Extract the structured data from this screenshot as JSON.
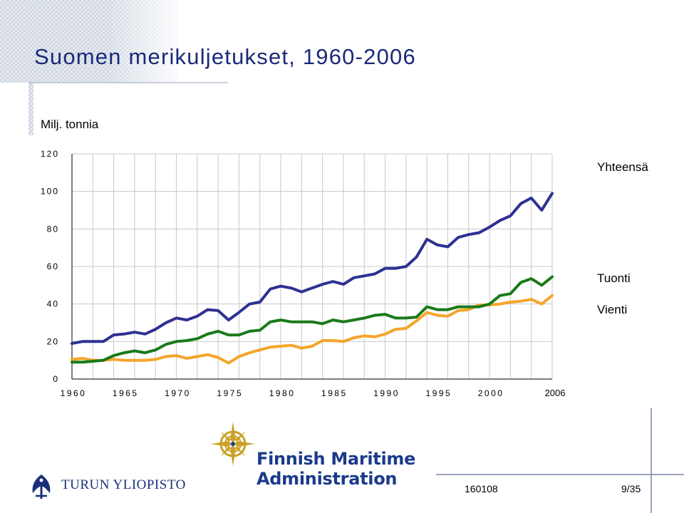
{
  "slide": {
    "title": "Suomen merikuljetukset, 1960-2006",
    "unit_label": "Milj. tonnia",
    "footer_code": "160108",
    "footer_page": "9/35"
  },
  "logos": {
    "university": "TURUN YLIOPISTO",
    "agency_line1": "Finnish Maritime",
    "agency_line2": "Administration"
  },
  "colors": {
    "title": "#1a2a7a",
    "total": "#2e3192",
    "import": "#1a7a1a",
    "export": "#f4a52a",
    "grid": "#c8c8c8"
  },
  "chart_data": {
    "type": "line",
    "title": "",
    "xlabel": "",
    "ylabel": "Milj. tonnia",
    "ylim": [
      0,
      120
    ],
    "yticks": [
      "0",
      "20",
      "40",
      "60",
      "80",
      "100",
      "120"
    ],
    "xticks": [
      "1960",
      "1965",
      "1970",
      "1975",
      "1980",
      "1985",
      "1990",
      "1995",
      "2000",
      "2006"
    ],
    "grid": true,
    "legend": "inline-right",
    "x": [
      1960,
      1961,
      1962,
      1963,
      1964,
      1965,
      1966,
      1967,
      1968,
      1969,
      1970,
      1971,
      1972,
      1973,
      1974,
      1975,
      1976,
      1977,
      1978,
      1979,
      1980,
      1981,
      1982,
      1983,
      1984,
      1985,
      1986,
      1987,
      1988,
      1989,
      1990,
      1991,
      1992,
      1993,
      1994,
      1995,
      1996,
      1997,
      1998,
      1999,
      2000,
      2001,
      2002,
      2003,
      2004,
      2005,
      2006
    ],
    "series": [
      {
        "name": "Yhteensä",
        "color": "#2e3192",
        "values": [
          19,
          20,
          20,
          20,
          23.5,
          24,
          25,
          24,
          26.5,
          30,
          32.5,
          31.5,
          33.5,
          37,
          36.5,
          31.5,
          35.5,
          40,
          41,
          48,
          49.5,
          48.5,
          46.5,
          48.5,
          50.5,
          52,
          50.5,
          54,
          55,
          56,
          59,
          59,
          60,
          65,
          74.5,
          71.5,
          70.5,
          75.5,
          77,
          78,
          81,
          84.5,
          87,
          93.5,
          96.5,
          90,
          99
        ]
      },
      {
        "name": "Tuonti",
        "color": "#1a7a1a",
        "values": [
          9,
          9,
          9.5,
          10,
          12.5,
          14,
          15,
          14,
          15.5,
          18.5,
          20,
          20.5,
          21.5,
          24,
          25.5,
          23.5,
          23.5,
          25.5,
          26,
          30.5,
          31.5,
          30.5,
          30.5,
          30.5,
          29.5,
          31.5,
          30.5,
          31.5,
          32.5,
          34,
          34.5,
          32.5,
          32.5,
          33,
          38.5,
          37,
          37,
          38.5,
          38.5,
          38.5,
          40,
          44.5,
          45.5,
          51.5,
          53.5,
          50,
          54.5
        ]
      },
      {
        "name": "Vienti",
        "color": "#f4a52a",
        "values": [
          10.5,
          11,
          10,
          10,
          10.5,
          10,
          10,
          10,
          10.5,
          12,
          12.5,
          11,
          12,
          13,
          11.5,
          8.5,
          12,
          14,
          15.5,
          17,
          17.5,
          18,
          16.5,
          17.5,
          20.5,
          20.5,
          20,
          22,
          23,
          22.5,
          24,
          26.5,
          27,
          31,
          35.5,
          34,
          33.5,
          36.5,
          37,
          39.5,
          39.5,
          40,
          41,
          41.5,
          42.5,
          40,
          44.5
        ]
      }
    ]
  }
}
